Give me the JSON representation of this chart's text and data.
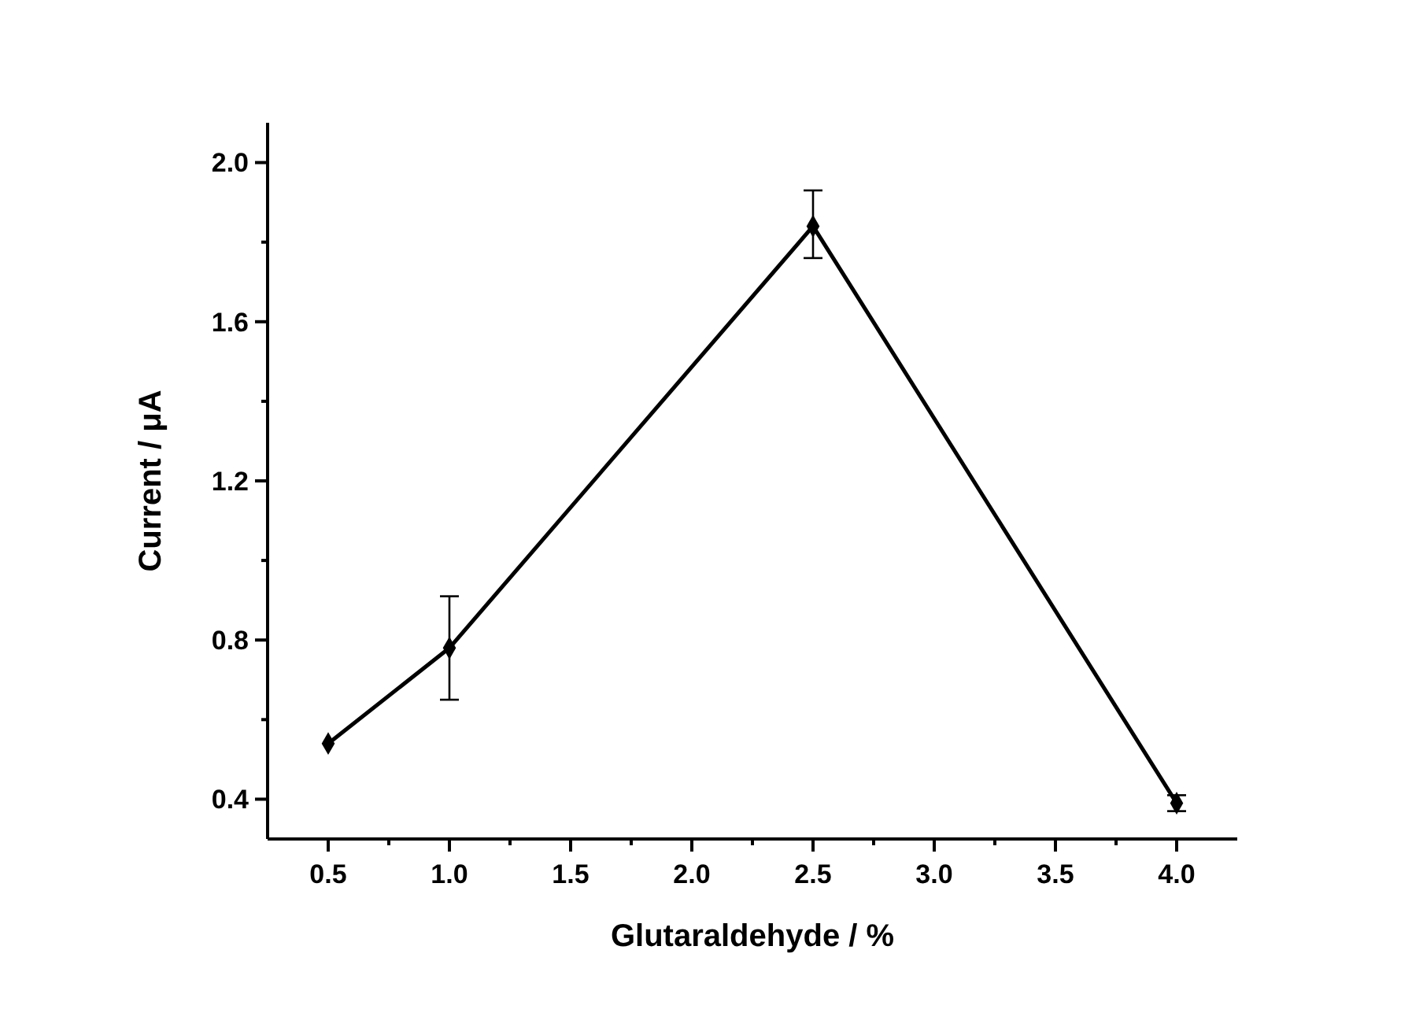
{
  "chart_data": {
    "type": "line",
    "xlabel": "Glutaraldehyde / %",
    "ylabel": "Current / μA",
    "x": [
      0.5,
      1.0,
      2.5,
      4.0
    ],
    "series": [
      {
        "color": "#000000",
        "values": [
          0.54,
          0.78,
          1.84,
          0.39
        ],
        "errors": [
          null,
          [
            0.65,
            0.91
          ],
          [
            1.76,
            1.93
          ],
          [
            0.37,
            0.41
          ]
        ]
      }
    ],
    "xlim": [
      0.25,
      4.25
    ],
    "ylim": [
      0.3,
      2.1
    ],
    "xticks": [
      0.5,
      {
        "value": 0.75,
        "label": null
      },
      "1.0",
      {
        "value": 1.25,
        "label": null
      },
      1.5,
      {
        "value": 1.75,
        "label": null
      },
      "2.0",
      {
        "value": 2.25,
        "label": null
      },
      2.5,
      {
        "value": 2.75,
        "label": null
      },
      "3.0",
      {
        "value": 3.25,
        "label": null
      },
      3.5,
      {
        "value": 3.75,
        "label": null
      },
      "4.0"
    ],
    "yticks": [
      0.4,
      {
        "value": 0.6,
        "label": null
      },
      0.8,
      {
        "value": 1.0,
        "label": null
      },
      1.2,
      {
        "value": 1.4,
        "label": null
      },
      1.6,
      {
        "value": 1.8,
        "label": null
      },
      "2.0"
    ],
    "marker": "diamond",
    "line_style": "solid",
    "grid": false
  }
}
